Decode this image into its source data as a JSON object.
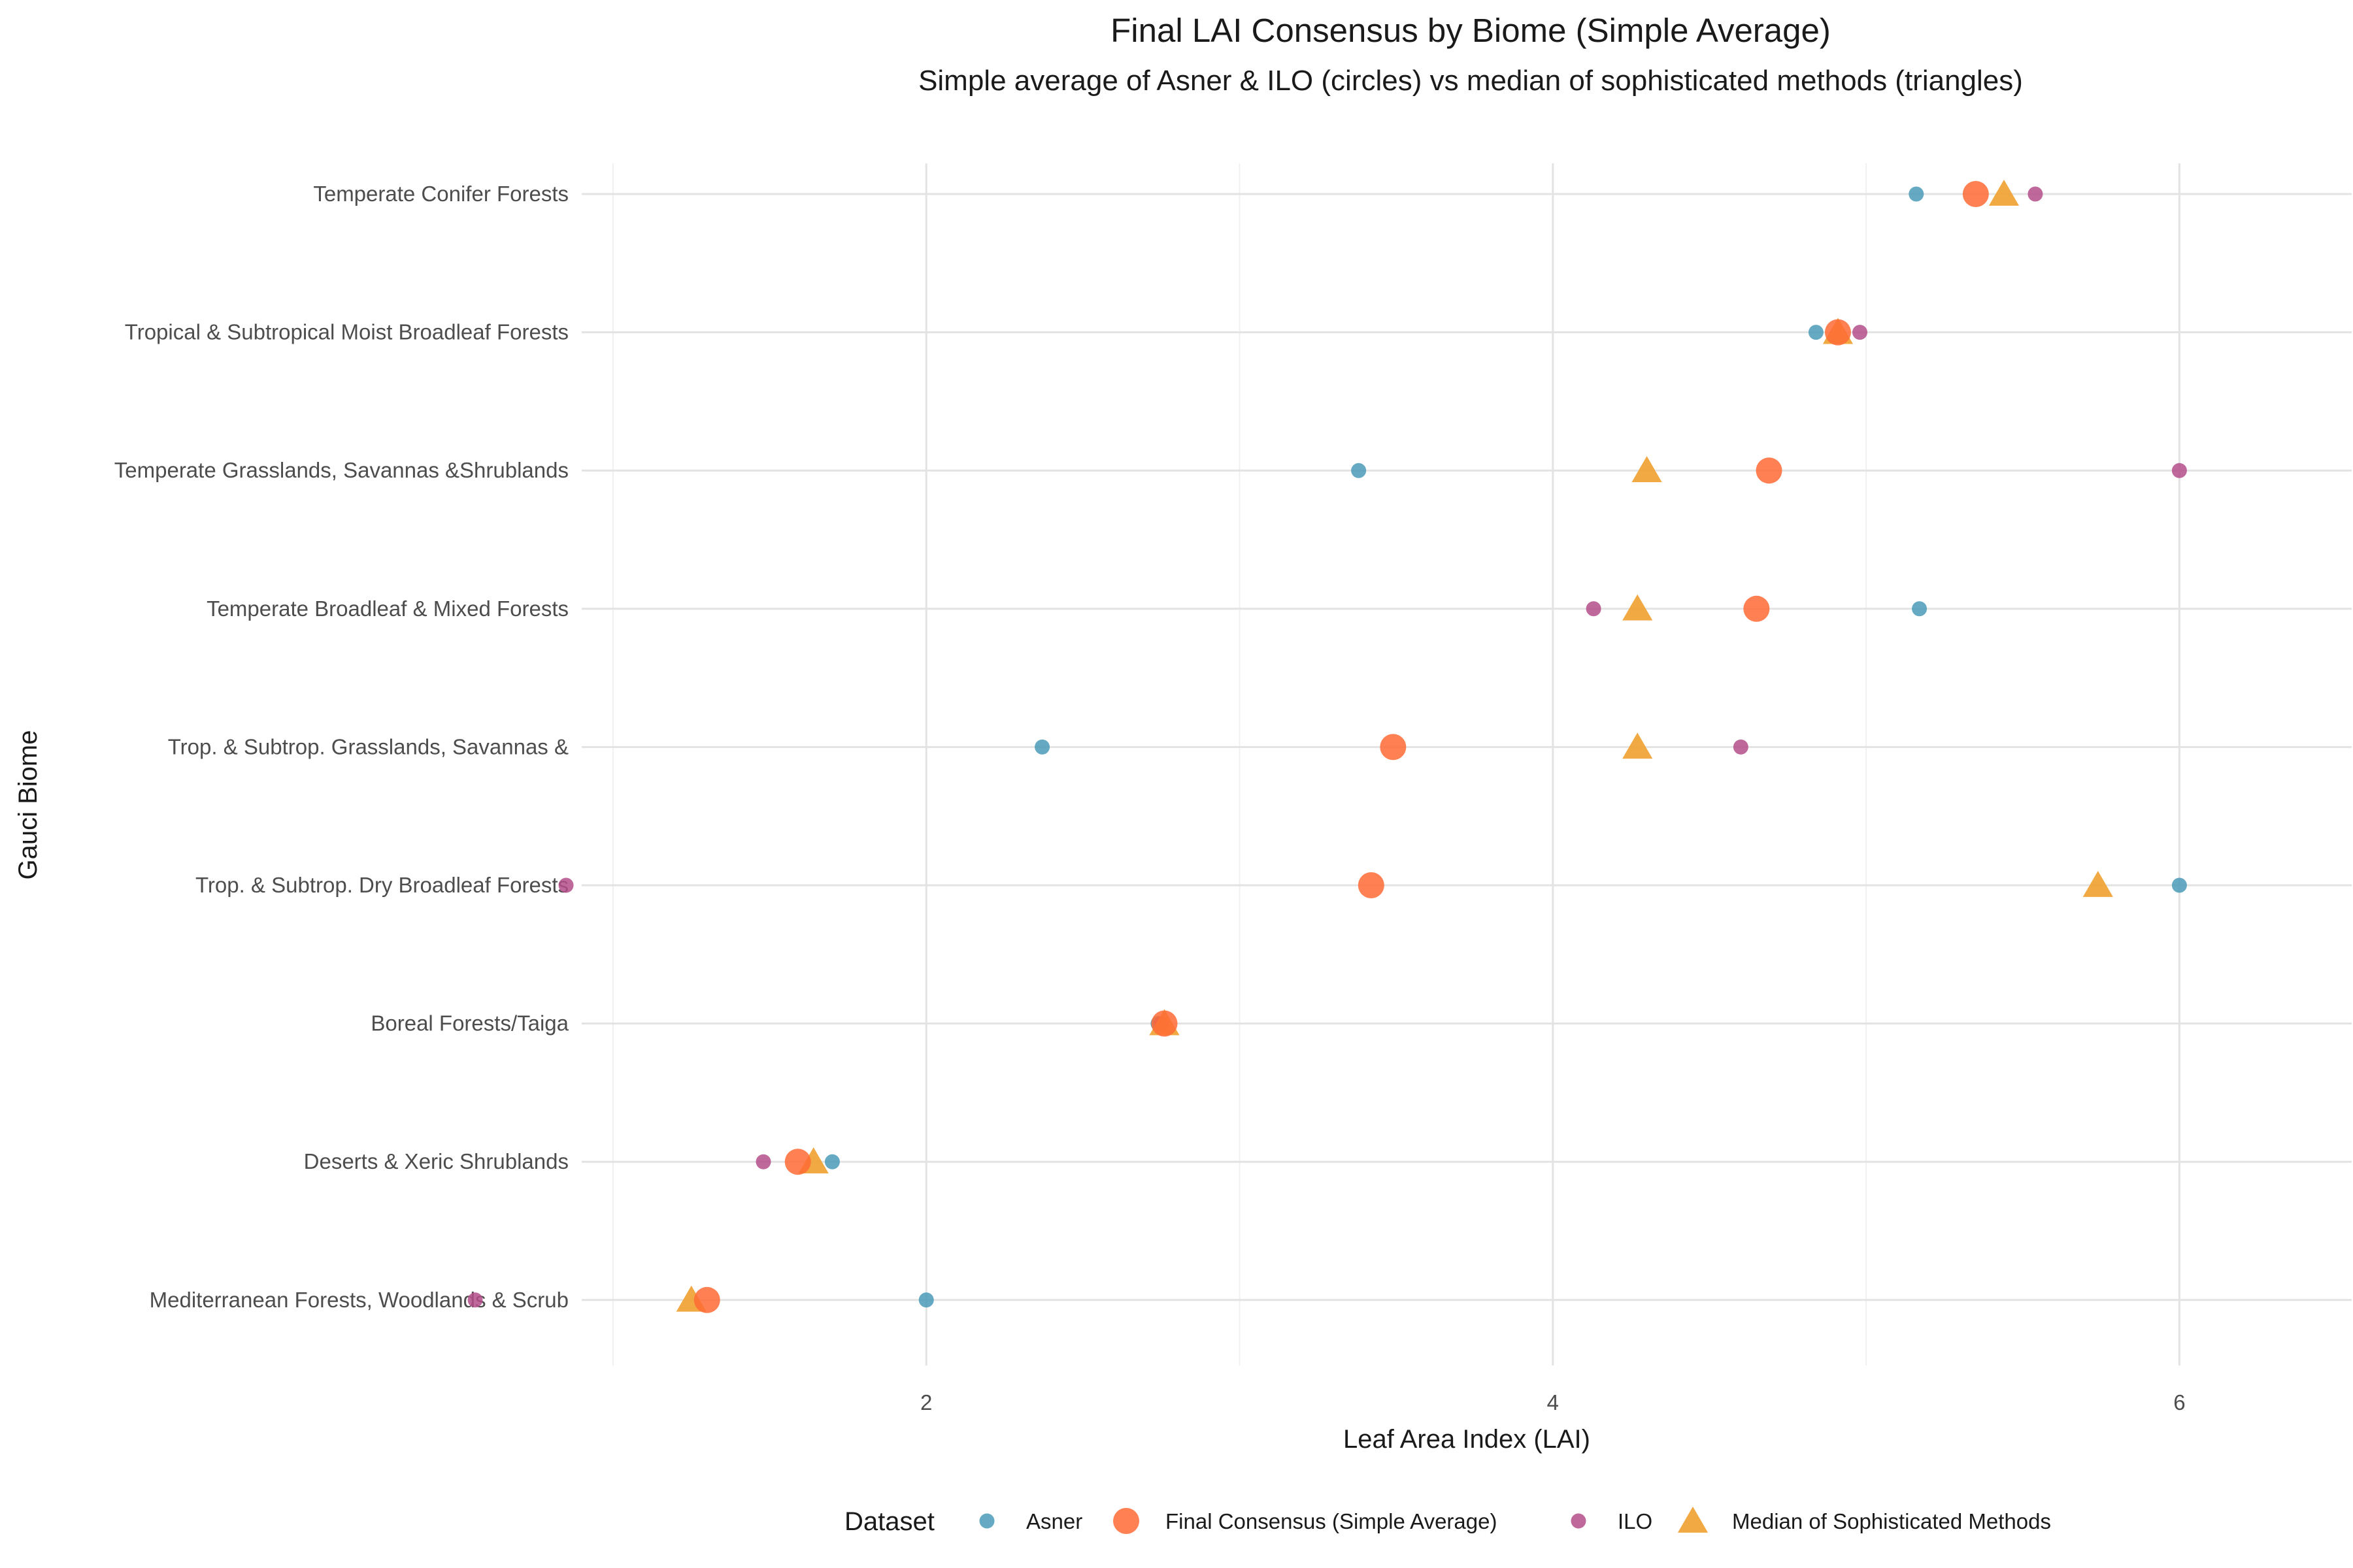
{
  "chart_data": {
    "type": "scatter",
    "title": "Final LAI Consensus by Biome (Simple Average)",
    "subtitle": "Simple average of Asner & ILO (circles) vs median of sophisticated methods (triangles)",
    "xlabel": "Leaf Area Index (LAI)",
    "ylabel": "Gauci Biome",
    "xlim": [
      0.9,
      6.55
    ],
    "xticks": [
      2,
      4,
      6
    ],
    "grid": true,
    "legend_position": "bottom",
    "legend_title": "Dataset",
    "categories": [
      "Temperate Conifer Forests",
      "Tropical & Subtropical Moist Broadleaf Forests",
      "Temperate Grasslands, Savannas &Shrublands",
      "Temperate Broadleaf & Mixed Forests",
      "Trop. & Subtrop. Grasslands, Savannas &",
      "Trop. & Subtrop. Dry Broadleaf Forests",
      "Boreal Forests/Taiga",
      "Deserts & Xeric Shrublands",
      "Mediterranean Forests, Woodlands & Scrub"
    ],
    "series": [
      {
        "name": "Asner",
        "shape": "circle-small",
        "color": "#4A9AB8",
        "values": [
          5.16,
          4.84,
          3.38,
          5.17,
          2.37,
          6.0,
          2.74,
          1.7,
          2.0
        ]
      },
      {
        "name": "Final Consensus (Simple Average)",
        "shape": "circle-large",
        "color": "#FF6B35",
        "values": [
          5.35,
          4.91,
          4.69,
          4.65,
          3.49,
          3.42,
          2.76,
          1.59,
          1.3
        ]
      },
      {
        "name": "ILO",
        "shape": "circle-small",
        "color": "#B44D8A",
        "values": [
          5.54,
          4.98,
          6.0,
          4.13,
          4.6,
          0.85,
          2.75,
          1.48,
          0.56
        ]
      },
      {
        "name": "Median of Sophisticated Methods",
        "shape": "triangle",
        "color": "#F0A030",
        "values": [
          5.44,
          4.91,
          4.3,
          4.27,
          4.27,
          5.74,
          2.76,
          1.64,
          1.25
        ]
      }
    ]
  }
}
